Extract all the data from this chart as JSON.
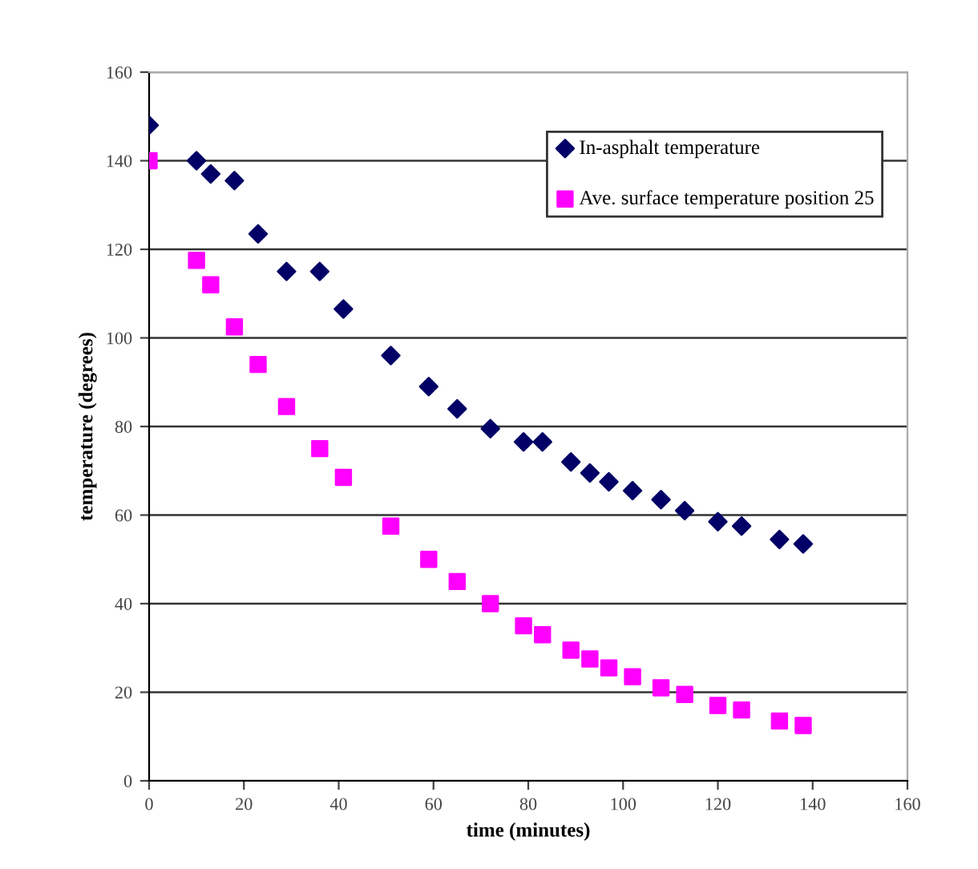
{
  "chart_data": {
    "type": "scatter",
    "xlabel": "time (minutes)",
    "ylabel": "temperature (degrees)",
    "x": [
      0,
      10,
      13,
      18,
      23,
      29,
      36,
      41,
      51,
      59,
      65,
      72,
      79,
      83,
      89,
      93,
      97,
      102,
      108,
      113,
      120,
      125,
      133,
      138
    ],
    "series": [
      {
        "name": "In-asphalt temperature",
        "color": "#000066",
        "marker": "diamond",
        "values": [
          148,
          140,
          137,
          135.5,
          123.5,
          115,
          115,
          106.5,
          96,
          89,
          84,
          79.5,
          76.5,
          76.5,
          72,
          69.5,
          67.5,
          65.5,
          63.5,
          61,
          58.5,
          57.5,
          54.5,
          53.5
        ]
      },
      {
        "name": "Ave. surface temperature position 25",
        "color": "#ff00ff",
        "marker": "square",
        "values": [
          140,
          117.5,
          112,
          102.5,
          94,
          84.5,
          75,
          68.5,
          57.5,
          50,
          45,
          40,
          35,
          33,
          29.5,
          27.5,
          25.5,
          23.5,
          21,
          19.5,
          17,
          16,
          13.5,
          12.5
        ]
      }
    ],
    "xlim": [
      0,
      160
    ],
    "xticks": [
      0,
      20,
      40,
      60,
      80,
      100,
      120,
      140,
      160
    ],
    "ylim": [
      0,
      160
    ],
    "yticks": [
      0,
      20,
      40,
      60,
      80,
      100,
      120,
      140,
      160
    ],
    "grid": "y",
    "legend": "top right"
  }
}
